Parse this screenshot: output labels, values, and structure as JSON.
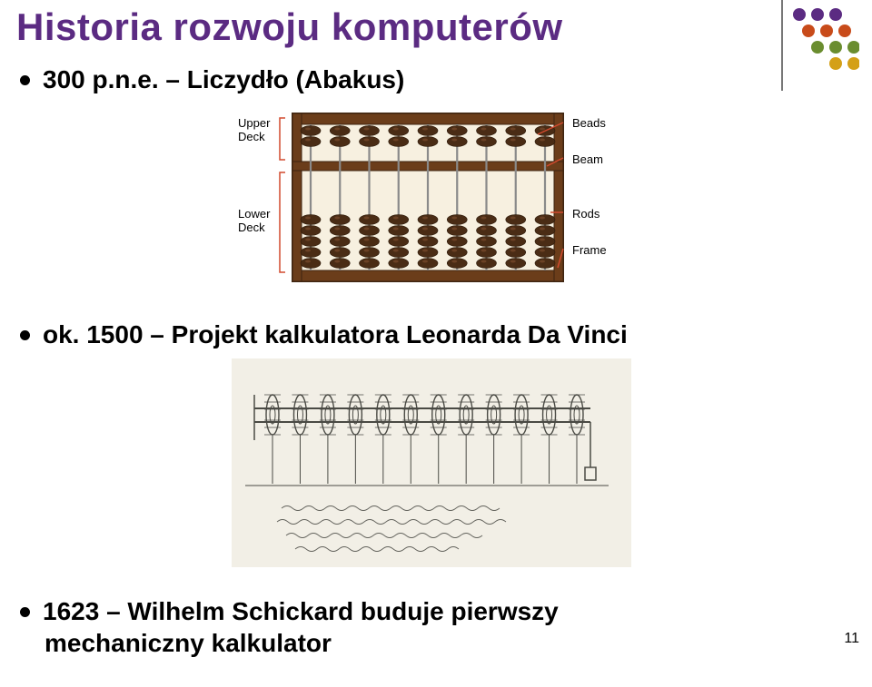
{
  "title": "Historia rozwoju komputerów",
  "bullets": [
    {
      "text": "300 p.n.e. – Liczydło (Abakus)"
    },
    {
      "text": "ok. 1500 – Projekt kalkulatora Leonarda Da Vinci"
    },
    {
      "text": "1623 – Wilhelm Schickard buduje pierwszy"
    }
  ],
  "bullet3_cont": "mechaniczny kalkulator",
  "page_number": "11",
  "abacus": {
    "labels": {
      "upper": "Upper\nDeck",
      "lower": "Lower\nDeck",
      "beads": "Beads",
      "beam": "Beam",
      "rods": "Rods",
      "frame": "Frame"
    },
    "frame_color": "#6b3d1a",
    "frame_border": "#3e2410",
    "rod_color": "#8a8a8a",
    "bead_color": "#4a2c15",
    "bead_highlight": "#6b4125",
    "arrow_color": "#d24a2e",
    "label_bracket_color": "#d24a2e",
    "rods_count": 9
  },
  "davinci": {
    "paper_color": "#f2efe6",
    "ink_color": "#4a4a44",
    "gear_count": 12
  },
  "decoration": {
    "colors": [
      "#5b2b82",
      "#c84b1a",
      "#6a8d2f",
      "#d4a017"
    ],
    "vline_color": "#777777"
  }
}
